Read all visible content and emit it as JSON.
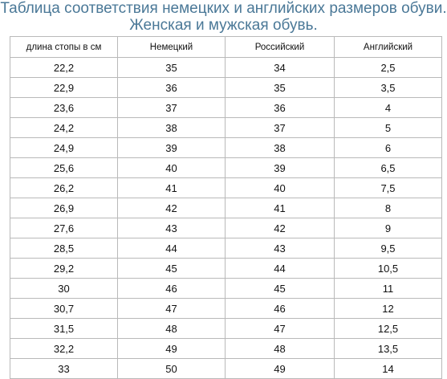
{
  "title": {
    "line1": "Таблица соответствия немецких и английских размеров обуви.",
    "line2": "Женская и мужская обувь."
  },
  "table": {
    "headers": [
      "длина стопы в см",
      "Немецкий",
      "Российский",
      "Английский"
    ],
    "rows": [
      [
        "22,2",
        "35",
        "34",
        "2,5"
      ],
      [
        "22,9",
        "36",
        "35",
        "3,5"
      ],
      [
        "23,6",
        "37",
        "36",
        "4"
      ],
      [
        "24,2",
        "38",
        "37",
        "5"
      ],
      [
        "24,9",
        "39",
        "38",
        "6"
      ],
      [
        "25,6",
        "40",
        "39",
        "6,5"
      ],
      [
        "26,2",
        "41",
        "40",
        "7,5"
      ],
      [
        "26,9",
        "42",
        "41",
        "8"
      ],
      [
        "27,6",
        "43",
        "42",
        "9"
      ],
      [
        "28,5",
        "44",
        "43",
        "9,5"
      ],
      [
        "29,2",
        "45",
        "44",
        "10,5"
      ],
      [
        "30",
        "46",
        "45",
        "11"
      ],
      [
        "30,7",
        "47",
        "46",
        "12"
      ],
      [
        "31,5",
        "48",
        "47",
        "12,5"
      ],
      [
        "32,2",
        "49",
        "48",
        "13,5"
      ],
      [
        "33",
        "50",
        "49",
        "14"
      ]
    ]
  },
  "colors": {
    "title": "#4a7897",
    "grid": "#b9b9b9",
    "text": "#111111"
  }
}
